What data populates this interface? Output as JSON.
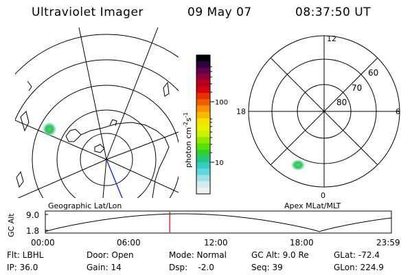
{
  "header": {
    "instrument": "Ultraviolet Imager",
    "date": "09 May 07",
    "time": "08:37:50 UT"
  },
  "left_map": {
    "label": "Geographic Lat/Lon"
  },
  "right_map": {
    "label": "Apex MLat/MLT",
    "mlt_labels": {
      "top": "12",
      "left": "18",
      "right": "6",
      "bottom": "0"
    },
    "lat_labels": [
      "60",
      "70",
      "80"
    ]
  },
  "colorbar": {
    "unit_label": "photon cm",
    "unit_exp1": "-2",
    "unit_s": "s",
    "unit_exp2": "-1",
    "ticks": [
      "100",
      "10"
    ],
    "colors": [
      "#000000",
      "#300040",
      "#60004a",
      "#90003a",
      "#b8001e",
      "#d80010",
      "#e83000",
      "#f06000",
      "#f89000",
      "#f8b800",
      "#f8e000",
      "#e8f000",
      "#c8f000",
      "#90e800",
      "#58e000",
      "#30d030",
      "#20c880",
      "#30d0c0",
      "#60d8e0",
      "#a0e0e8",
      "#d0ecf0",
      "#f0f0f0"
    ]
  },
  "altitude_strip": {
    "y_title": "GC Alt",
    "y_ticks": [
      "9.0",
      "1.8"
    ],
    "x_ticks": [
      "00:00",
      "06:00",
      "12:00",
      "18:00",
      "23:59"
    ],
    "current_time_hours": 8.63,
    "marker_color": "#cc0000"
  },
  "params": {
    "filter": "Flt: LBHL",
    "door": "Door: Open",
    "mode": "Mode: Normal",
    "gc_alt": "GC Alt: 9.0 Re",
    "glat": "GLat: -72.4",
    "ip": "IP: 36.0",
    "gain": "Gain: 14",
    "dsp": "Dsp:    -2.0",
    "seq": "Seq: 39",
    "glon": "GLon: 224.9"
  }
}
